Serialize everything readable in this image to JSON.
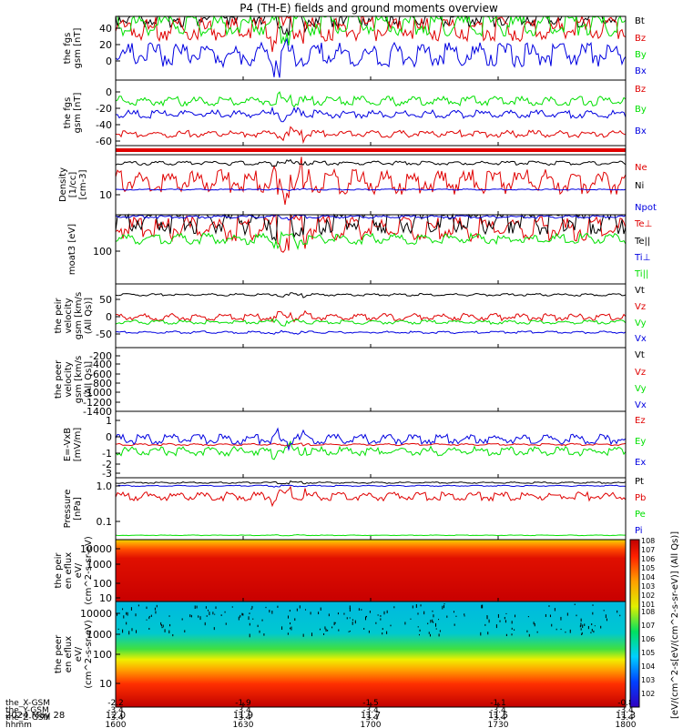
{
  "title": "P4 (TH-E) fields and ground moments overview",
  "colors": {
    "black": "#000000",
    "red": "#e00000",
    "green": "#00e000",
    "blue": "#0000e0"
  },
  "x_axis": {
    "tick_values": [
      "12.0",
      "11.9",
      "11.7",
      "11.5",
      "11.3"
    ],
    "rows": [
      {
        "label": "the_X-GSM",
        "values": [
          "-2.2",
          "-1.9",
          "-1.5",
          "-1.1",
          "-0.8"
        ]
      },
      {
        "label": "the_Y-GSM",
        "values": [
          "-3.4",
          "-3.4",
          "-3.4",
          "-3.4",
          "-3.4"
        ]
      },
      {
        "label": "the_Z-GSM",
        "values": [
          "-3.4",
          "-3.4",
          "-3.4",
          "-3.4",
          "-3.4"
        ]
      },
      {
        "label": "hhmm",
        "values": [
          "1600",
          "1630",
          "1700",
          "1730",
          "1800"
        ]
      }
    ],
    "date_label": "2024 May 28"
  },
  "colorbar": {
    "label": "[eV/(cm^2-s[eV/(cm^2-s-sr-eV)] (All Qs)]",
    "ticks_top": [
      "10^8",
      "10^7",
      "10^6",
      "10^5",
      "10^4",
      "10^3",
      "10^2",
      "10^1"
    ],
    "ticks_bottom": [
      "10^8",
      "10^7",
      "10^6",
      "10^5",
      "10^4",
      "10^3",
      "10^2"
    ]
  },
  "chart_data": [
    {
      "type": "line",
      "ylabel": "the fgs gsm [nT]",
      "yticks": [
        "40",
        "20",
        "0"
      ],
      "series": [
        {
          "name": "Bt",
          "color": "#000000"
        },
        {
          "name": "Bz",
          "color": "#e00000"
        },
        {
          "name": "By",
          "color": "#00e000"
        },
        {
          "name": "Bx",
          "color": "#0000e0"
        }
      ]
    },
    {
      "type": "line",
      "ylabel": "the fgs gsm [nT]",
      "yticks": [
        "0",
        "-20",
        "-40",
        "-60"
      ],
      "series": [
        {
          "name": "Bz",
          "color": "#e00000"
        },
        {
          "name": "By",
          "color": "#00e000"
        },
        {
          "name": "Bx",
          "color": "#0000e0"
        }
      ]
    },
    {
      "type": "line",
      "ylabel": "",
      "yticks": [],
      "series": []
    },
    {
      "type": "line",
      "ylabel": "Density [1/cc] [cm-3]",
      "yticks": [
        "10"
      ],
      "series": [
        {
          "name": "Ne",
          "color": "#e00000"
        },
        {
          "name": "Ni",
          "color": "#000000"
        },
        {
          "name": "Npot",
          "color": "#0000e0"
        }
      ]
    },
    {
      "type": "line",
      "ylabel": "moat3 [eV]",
      "yticks": [
        "100"
      ],
      "series": [
        {
          "name": "Te⊥",
          "color": "#e00000"
        },
        {
          "name": "Te||",
          "color": "#000000"
        },
        {
          "name": "Ti⊥",
          "color": "#0000e0"
        },
        {
          "name": "Ti||",
          "color": "#00e000"
        }
      ]
    },
    {
      "type": "line",
      "ylabel": "the peir velocity gsm [km/s (All Qs)]",
      "yticks": [
        "50",
        "0",
        "-50"
      ],
      "series": [
        {
          "name": "Vt",
          "color": "#000000"
        },
        {
          "name": "Vz",
          "color": "#e00000"
        },
        {
          "name": "Vy",
          "color": "#00e000"
        },
        {
          "name": "Vx",
          "color": "#0000e0"
        }
      ]
    },
    {
      "type": "line",
      "ylabel": "the peer velocity gsm [km/s (All Qs)]",
      "yticks": [
        "-200",
        "-400",
        "-600",
        "-800",
        "-1000",
        "-1200",
        "-1400"
      ],
      "series": [
        {
          "name": "Vt",
          "color": "#000000"
        },
        {
          "name": "Vz",
          "color": "#e00000"
        },
        {
          "name": "Vy",
          "color": "#00e000"
        },
        {
          "name": "Vx",
          "color": "#0000e0"
        }
      ]
    },
    {
      "type": "line",
      "ylabel": "E=-VxB [mV/m]",
      "yticks": [
        "1",
        "0",
        "-1",
        "-2",
        "-3"
      ],
      "series": [
        {
          "name": "Ez",
          "color": "#e00000"
        },
        {
          "name": "Ey",
          "color": "#00e000"
        },
        {
          "name": "Ex",
          "color": "#0000e0"
        }
      ]
    },
    {
      "type": "line",
      "ylabel": "Pressure [nPa]",
      "yticks": [
        "1.0",
        "0.1"
      ],
      "series": [
        {
          "name": "Pt",
          "color": "#000000"
        },
        {
          "name": "Pb",
          "color": "#e00000"
        },
        {
          "name": "Pe",
          "color": "#00e000"
        },
        {
          "name": "Pi",
          "color": "#0000e0"
        }
      ]
    },
    {
      "type": "heatmap",
      "ylabel": "the peir en eflux eV/ (cm^2-s-sr-eV)",
      "yticks": [
        "10000",
        "1000",
        "100",
        "10"
      ]
    },
    {
      "type": "heatmap",
      "ylabel": "the peer en eflux eV/ (cm^2-s-sr-eV)",
      "yticks": [
        "10000",
        "1000",
        "100",
        "10"
      ]
    }
  ]
}
